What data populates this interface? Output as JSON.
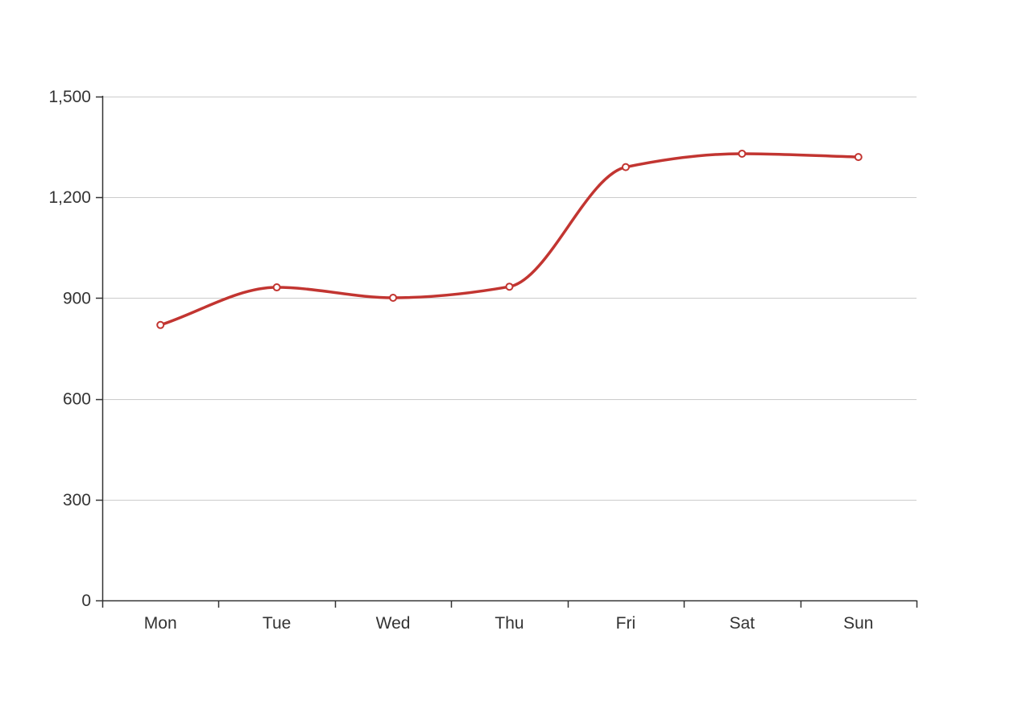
{
  "chart_data": {
    "type": "line",
    "smooth": true,
    "categories": [
      "Mon",
      "Tue",
      "Wed",
      "Thu",
      "Fri",
      "Sat",
      "Sun"
    ],
    "series": [
      {
        "values": [
          820,
          932,
          901,
          934,
          1290,
          1330,
          1320
        ],
        "color": "#c23531"
      }
    ],
    "ylim": [
      0,
      1500
    ],
    "y_ticks": [
      0,
      300,
      600,
      900,
      1200,
      1500
    ],
    "y_tick_labels": [
      "0",
      "300",
      "600",
      "900",
      "1,200",
      "1,500"
    ],
    "grid": true,
    "colors": {
      "axis": "#333333",
      "grid": "#cccccc",
      "marker_fill": "#ffffff"
    }
  }
}
